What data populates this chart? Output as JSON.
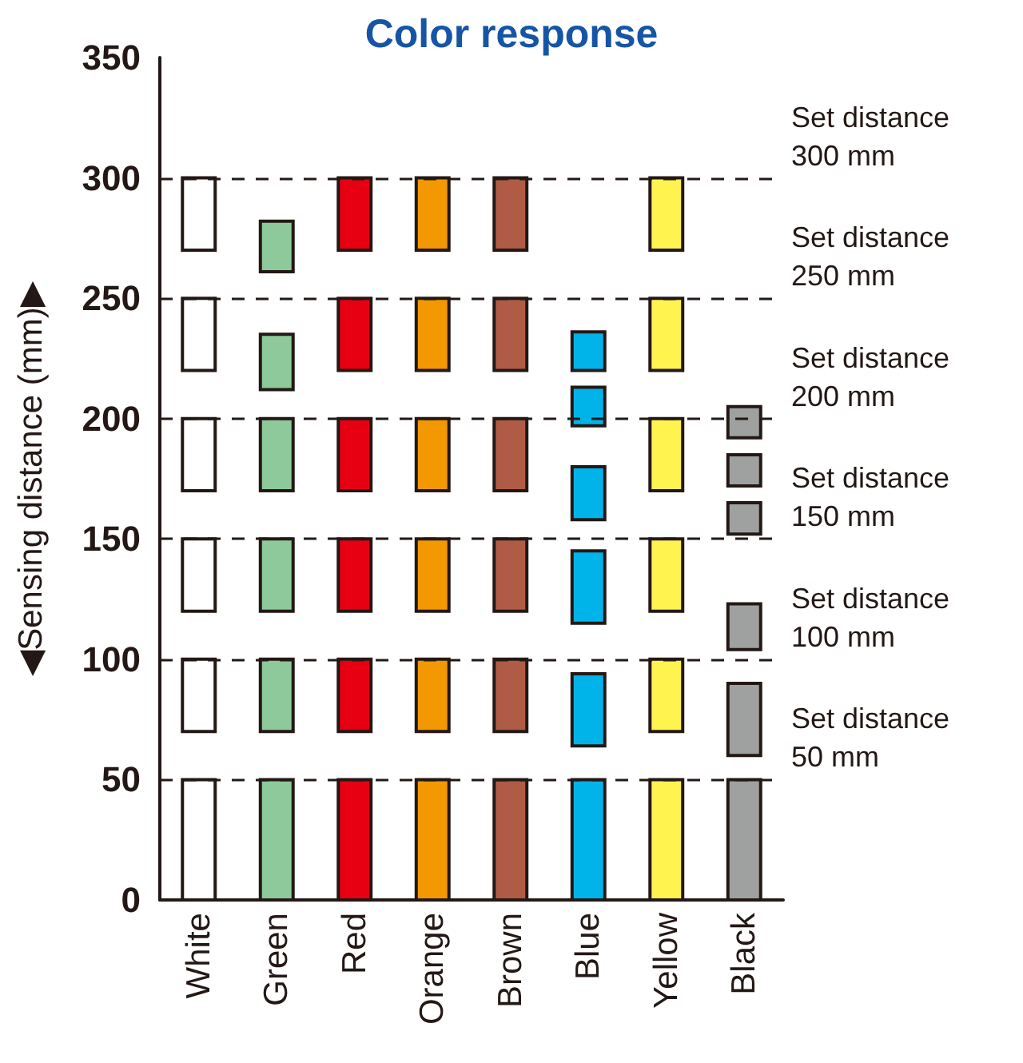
{
  "chart_data": {
    "type": "bar",
    "title": "Color response",
    "ylabel": "◀Sensing distance (mm)▶",
    "categories": [
      "White",
      "Green",
      "Red",
      "Orange",
      "Brown",
      "Blue",
      "Yellow",
      "Black"
    ],
    "series": [
      {
        "colors": [
          "#ffffff",
          "#8dc99a",
          "#e60012",
          "#f39800",
          "#b05b45",
          "#00b4ea",
          "#fff350",
          "#9fa0a0"
        ],
        "base": [
          270,
          261,
          270,
          270,
          270,
          220,
          270,
          192
        ],
        "values": [
          30,
          21,
          30,
          30,
          30,
          16,
          30,
          13
        ]
      },
      {
        "colors": [
          "#ffffff",
          "#8dc99a",
          "#e60012",
          "#f39800",
          "#b05b45",
          "#00b4ea",
          "#fff350",
          "#9fa0a0"
        ],
        "base": [
          220,
          212,
          220,
          220,
          220,
          197,
          220,
          172
        ],
        "values": [
          30,
          23,
          30,
          30,
          30,
          16,
          30,
          13
        ]
      },
      {
        "colors": [
          "#ffffff",
          "#8dc99a",
          "#e60012",
          "#f39800",
          "#b05b45",
          "#00b4ea",
          "#fff350",
          "#9fa0a0"
        ],
        "base": [
          170,
          170,
          170,
          170,
          170,
          158,
          170,
          152
        ],
        "values": [
          30,
          30,
          30,
          30,
          30,
          22,
          30,
          13
        ]
      },
      {
        "colors": [
          "#ffffff",
          "#8dc99a",
          "#e60012",
          "#f39800",
          "#b05b45",
          "#00b4ea",
          "#fff350",
          "#9fa0a0"
        ],
        "base": [
          120,
          120,
          120,
          120,
          120,
          115,
          120,
          104
        ],
        "values": [
          30,
          30,
          30,
          30,
          30,
          30,
          30,
          19
        ]
      },
      {
        "colors": [
          "#ffffff",
          "#8dc99a",
          "#e60012",
          "#f39800",
          "#b05b45",
          "#00b4ea",
          "#fff350",
          "#9fa0a0"
        ],
        "base": [
          70,
          70,
          70,
          70,
          70,
          64,
          70,
          60
        ],
        "values": [
          30,
          30,
          30,
          30,
          30,
          30,
          30,
          30
        ]
      },
      {
        "colors": [
          "#ffffff",
          "#8dc99a",
          "#e60012",
          "#f39800",
          "#b05b45",
          "#00b4ea",
          "#fff350",
          "#9fa0a0"
        ],
        "base": [
          0,
          0,
          0,
          0,
          0,
          0,
          0,
          0
        ],
        "values": [
          50,
          50,
          50,
          50,
          50,
          50,
          50,
          50
        ]
      }
    ],
    "ylim": [
      0,
      350
    ],
    "yticks": [
      0,
      50,
      100,
      150,
      200,
      250,
      300,
      350
    ],
    "grid": false,
    "ref_lines": [
      {
        "axis": "y",
        "value": 300,
        "label": "Set distance 300 mm",
        "line_style": "dashed",
        "color": "#231815"
      },
      {
        "axis": "y",
        "value": 250,
        "label": "Set distance 250 mm",
        "line_style": "dashed",
        "color": "#231815"
      },
      {
        "axis": "y",
        "value": 200,
        "label": "Set distance 200 mm",
        "line_style": "dashed",
        "color": "#231815"
      },
      {
        "axis": "y",
        "value": 150,
        "label": "Set distance 150 mm",
        "line_style": "dashed",
        "color": "#231815"
      },
      {
        "axis": "y",
        "value": 100,
        "label": "Set distance 100 mm",
        "line_style": "dashed",
        "color": "#231815"
      },
      {
        "axis": "y",
        "value": 50,
        "label": "Set distance 50 mm",
        "line_style": "dashed",
        "color": "#231815"
      }
    ]
  }
}
